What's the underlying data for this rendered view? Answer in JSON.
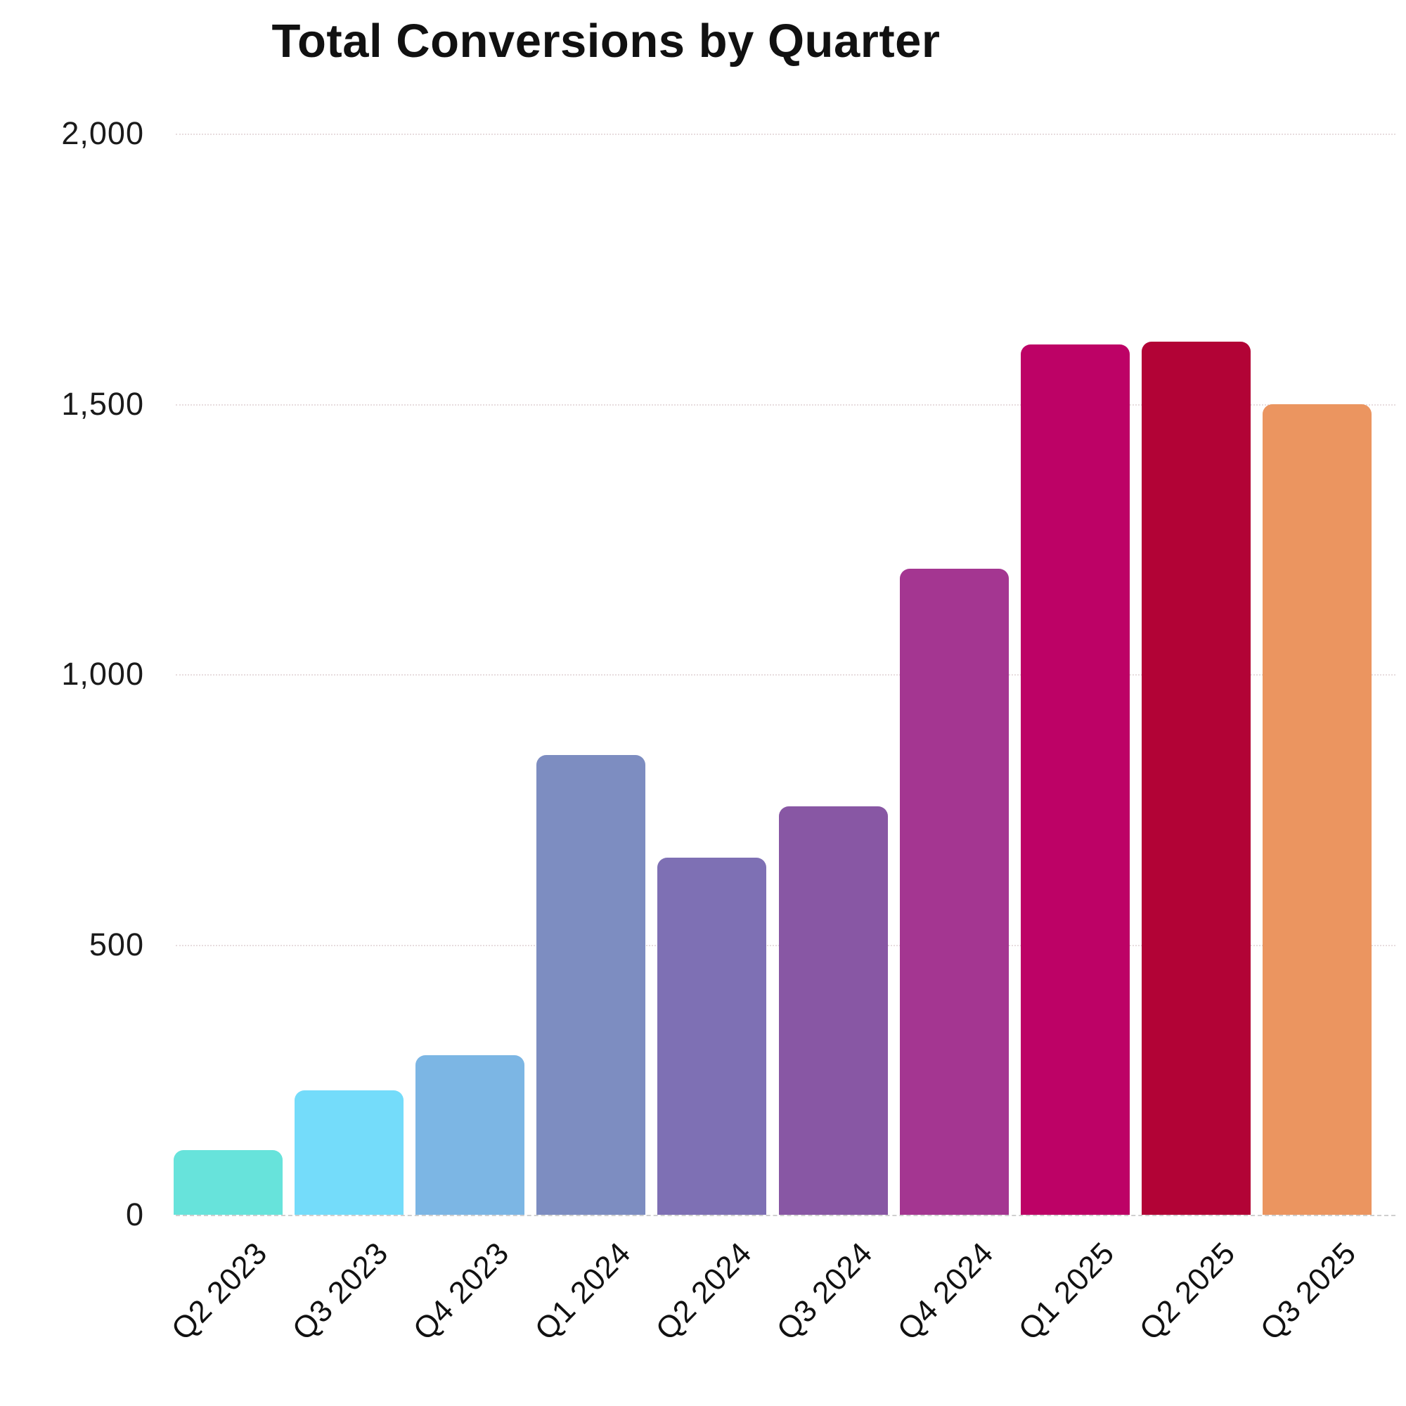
{
  "title": "Total Conversions by Quarter",
  "chart_data": {
    "type": "bar",
    "title": "Total Conversions by Quarter",
    "categories": [
      "Q2 2023",
      "Q3 2023",
      "Q4 2023",
      "Q1 2024",
      "Q2 2024",
      "Q3 2024",
      "Q4 2024",
      "Q1 2025",
      "Q2 2025",
      "Q3 2025"
    ],
    "values": [
      120,
      230,
      295,
      850,
      660,
      755,
      1195,
      1610,
      1615,
      1500
    ],
    "bar_colors": [
      "#67e3db",
      "#74dcfa",
      "#7cb6e4",
      "#7d8dc1",
      "#7e70b4",
      "#8857a4",
      "#a43691",
      "#bd0266",
      "#b20336",
      "#eb9560"
    ],
    "xlabel": "",
    "ylabel": "",
    "ylim": [
      0,
      2000
    ],
    "yticks": [
      0,
      500,
      1000,
      1500,
      2000
    ],
    "ytick_labels": [
      "0",
      "500",
      "1,000",
      "1,500",
      "2,000"
    ],
    "grid": "horizontal-dotted",
    "legend": "none",
    "bar_corner": "rounded-top"
  },
  "colors": {
    "background": "#ffffff",
    "grid": "#e7dcde",
    "axis_baseline": "#cfcfcf",
    "text": "#111111"
  }
}
